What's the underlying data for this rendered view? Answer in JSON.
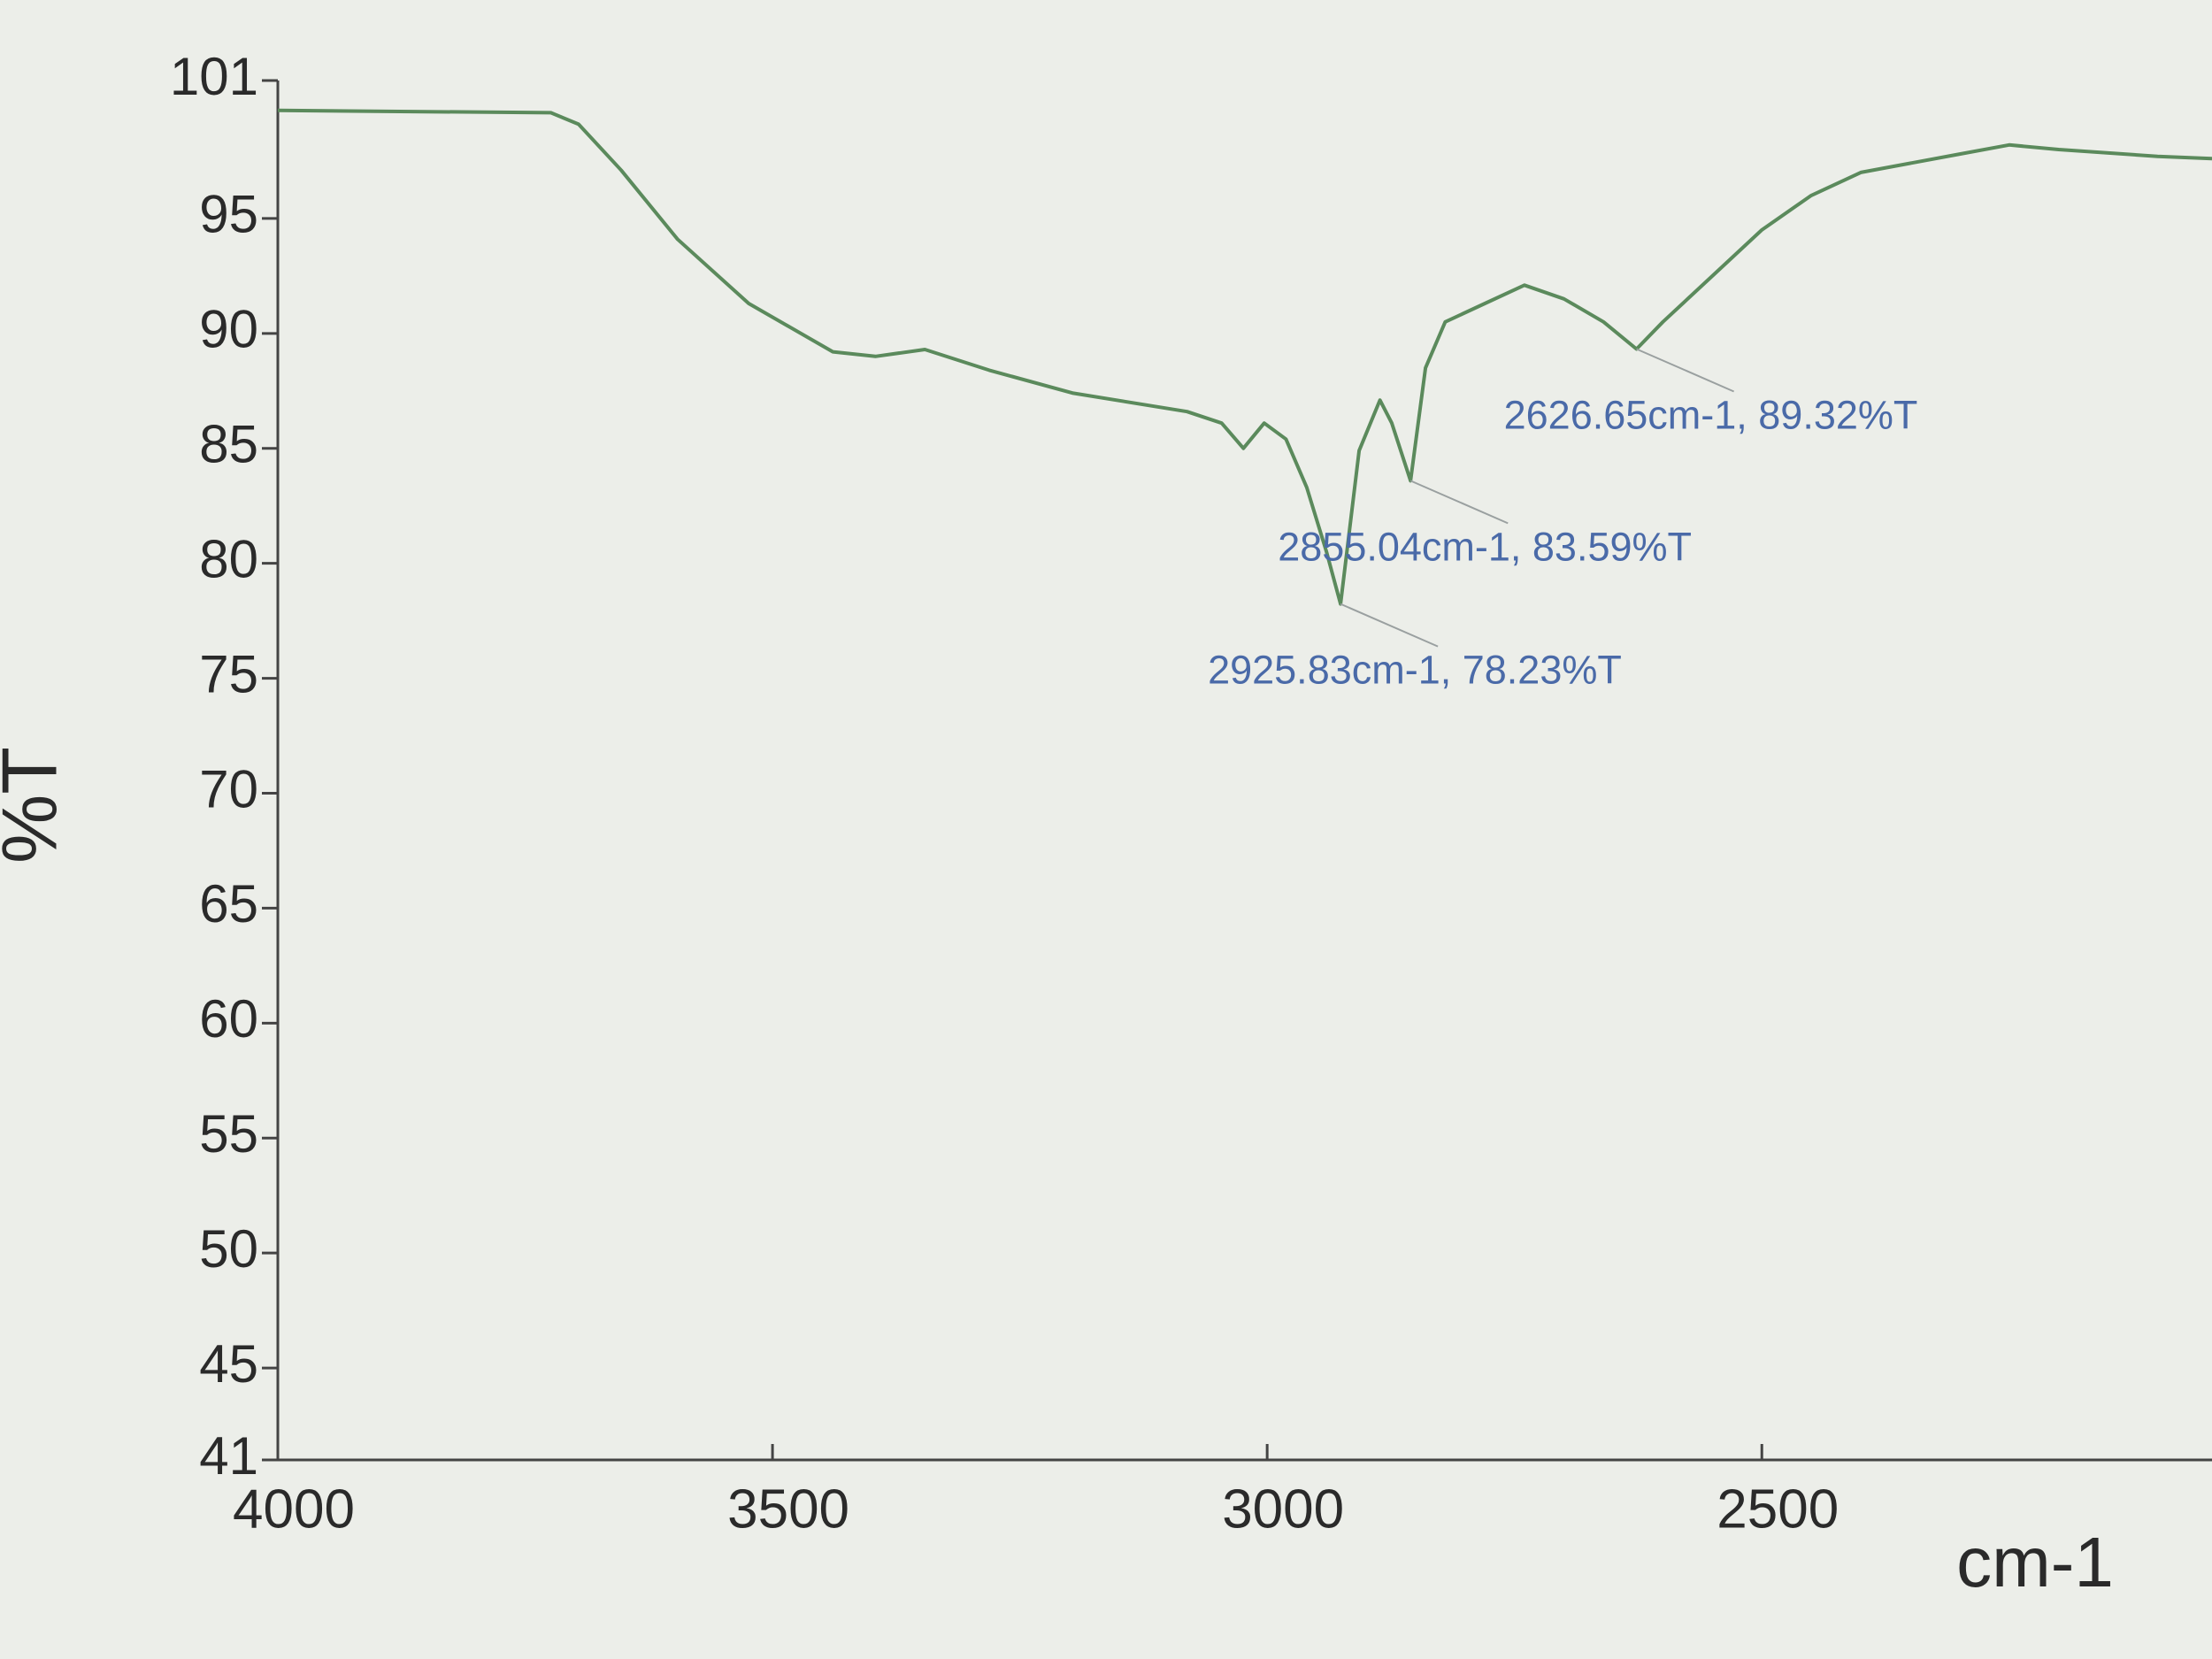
{
  "chart_data": {
    "type": "line",
    "x_label": "cm-1",
    "y_label": "%T",
    "color": "#5b8a5c",
    "x": [
      4000,
      3724,
      3696,
      3653,
      3596,
      3524,
      3439,
      3396,
      3346,
      3281,
      3196,
      3081,
      3046,
      3024,
      3003,
      2981,
      2960,
      2940,
      2925.83,
      2907,
      2886,
      2874,
      2855.04,
      2840,
      2820,
      2780,
      2740,
      2700,
      2660,
      2626.65,
      2600,
      2550,
      2500,
      2450,
      2400,
      2300,
      2250,
      2200,
      2100,
      2045
    ],
    "values": [
      99.7,
      99.6,
      99.1,
      97.1,
      94.1,
      91.3,
      89.2,
      89.0,
      89.3,
      88.4,
      87.4,
      86.6,
      86.1,
      85.0,
      86.1,
      85.4,
      83.3,
      80.5,
      78.23,
      84.9,
      87.1,
      86.1,
      83.59,
      88.5,
      90.5,
      91.3,
      92.1,
      91.5,
      90.5,
      89.32,
      90.5,
      92.5,
      94.5,
      96.0,
      97.0,
      97.8,
      98.2,
      98.0,
      97.7,
      97.6
    ],
    "xlim": [
      4000,
      2045
    ],
    "xticks": [
      4000,
      3500,
      3000,
      2500
    ],
    "ylim": [
      41,
      101
    ],
    "yticks": [
      41,
      45,
      50,
      55,
      60,
      65,
      70,
      75,
      80,
      85,
      90,
      95,
      101
    ],
    "annotations": [
      {
        "text": "2925.83cm-1, 78.23%T",
        "x": 2925.83,
        "y": 78.23
      },
      {
        "text": "2855.04cm-1, 83.59%T",
        "x": 2855.04,
        "y": 83.59
      },
      {
        "text": "2626.65cm-1, 89.32%T",
        "x": 2626.65,
        "y": 89.32
      }
    ]
  }
}
